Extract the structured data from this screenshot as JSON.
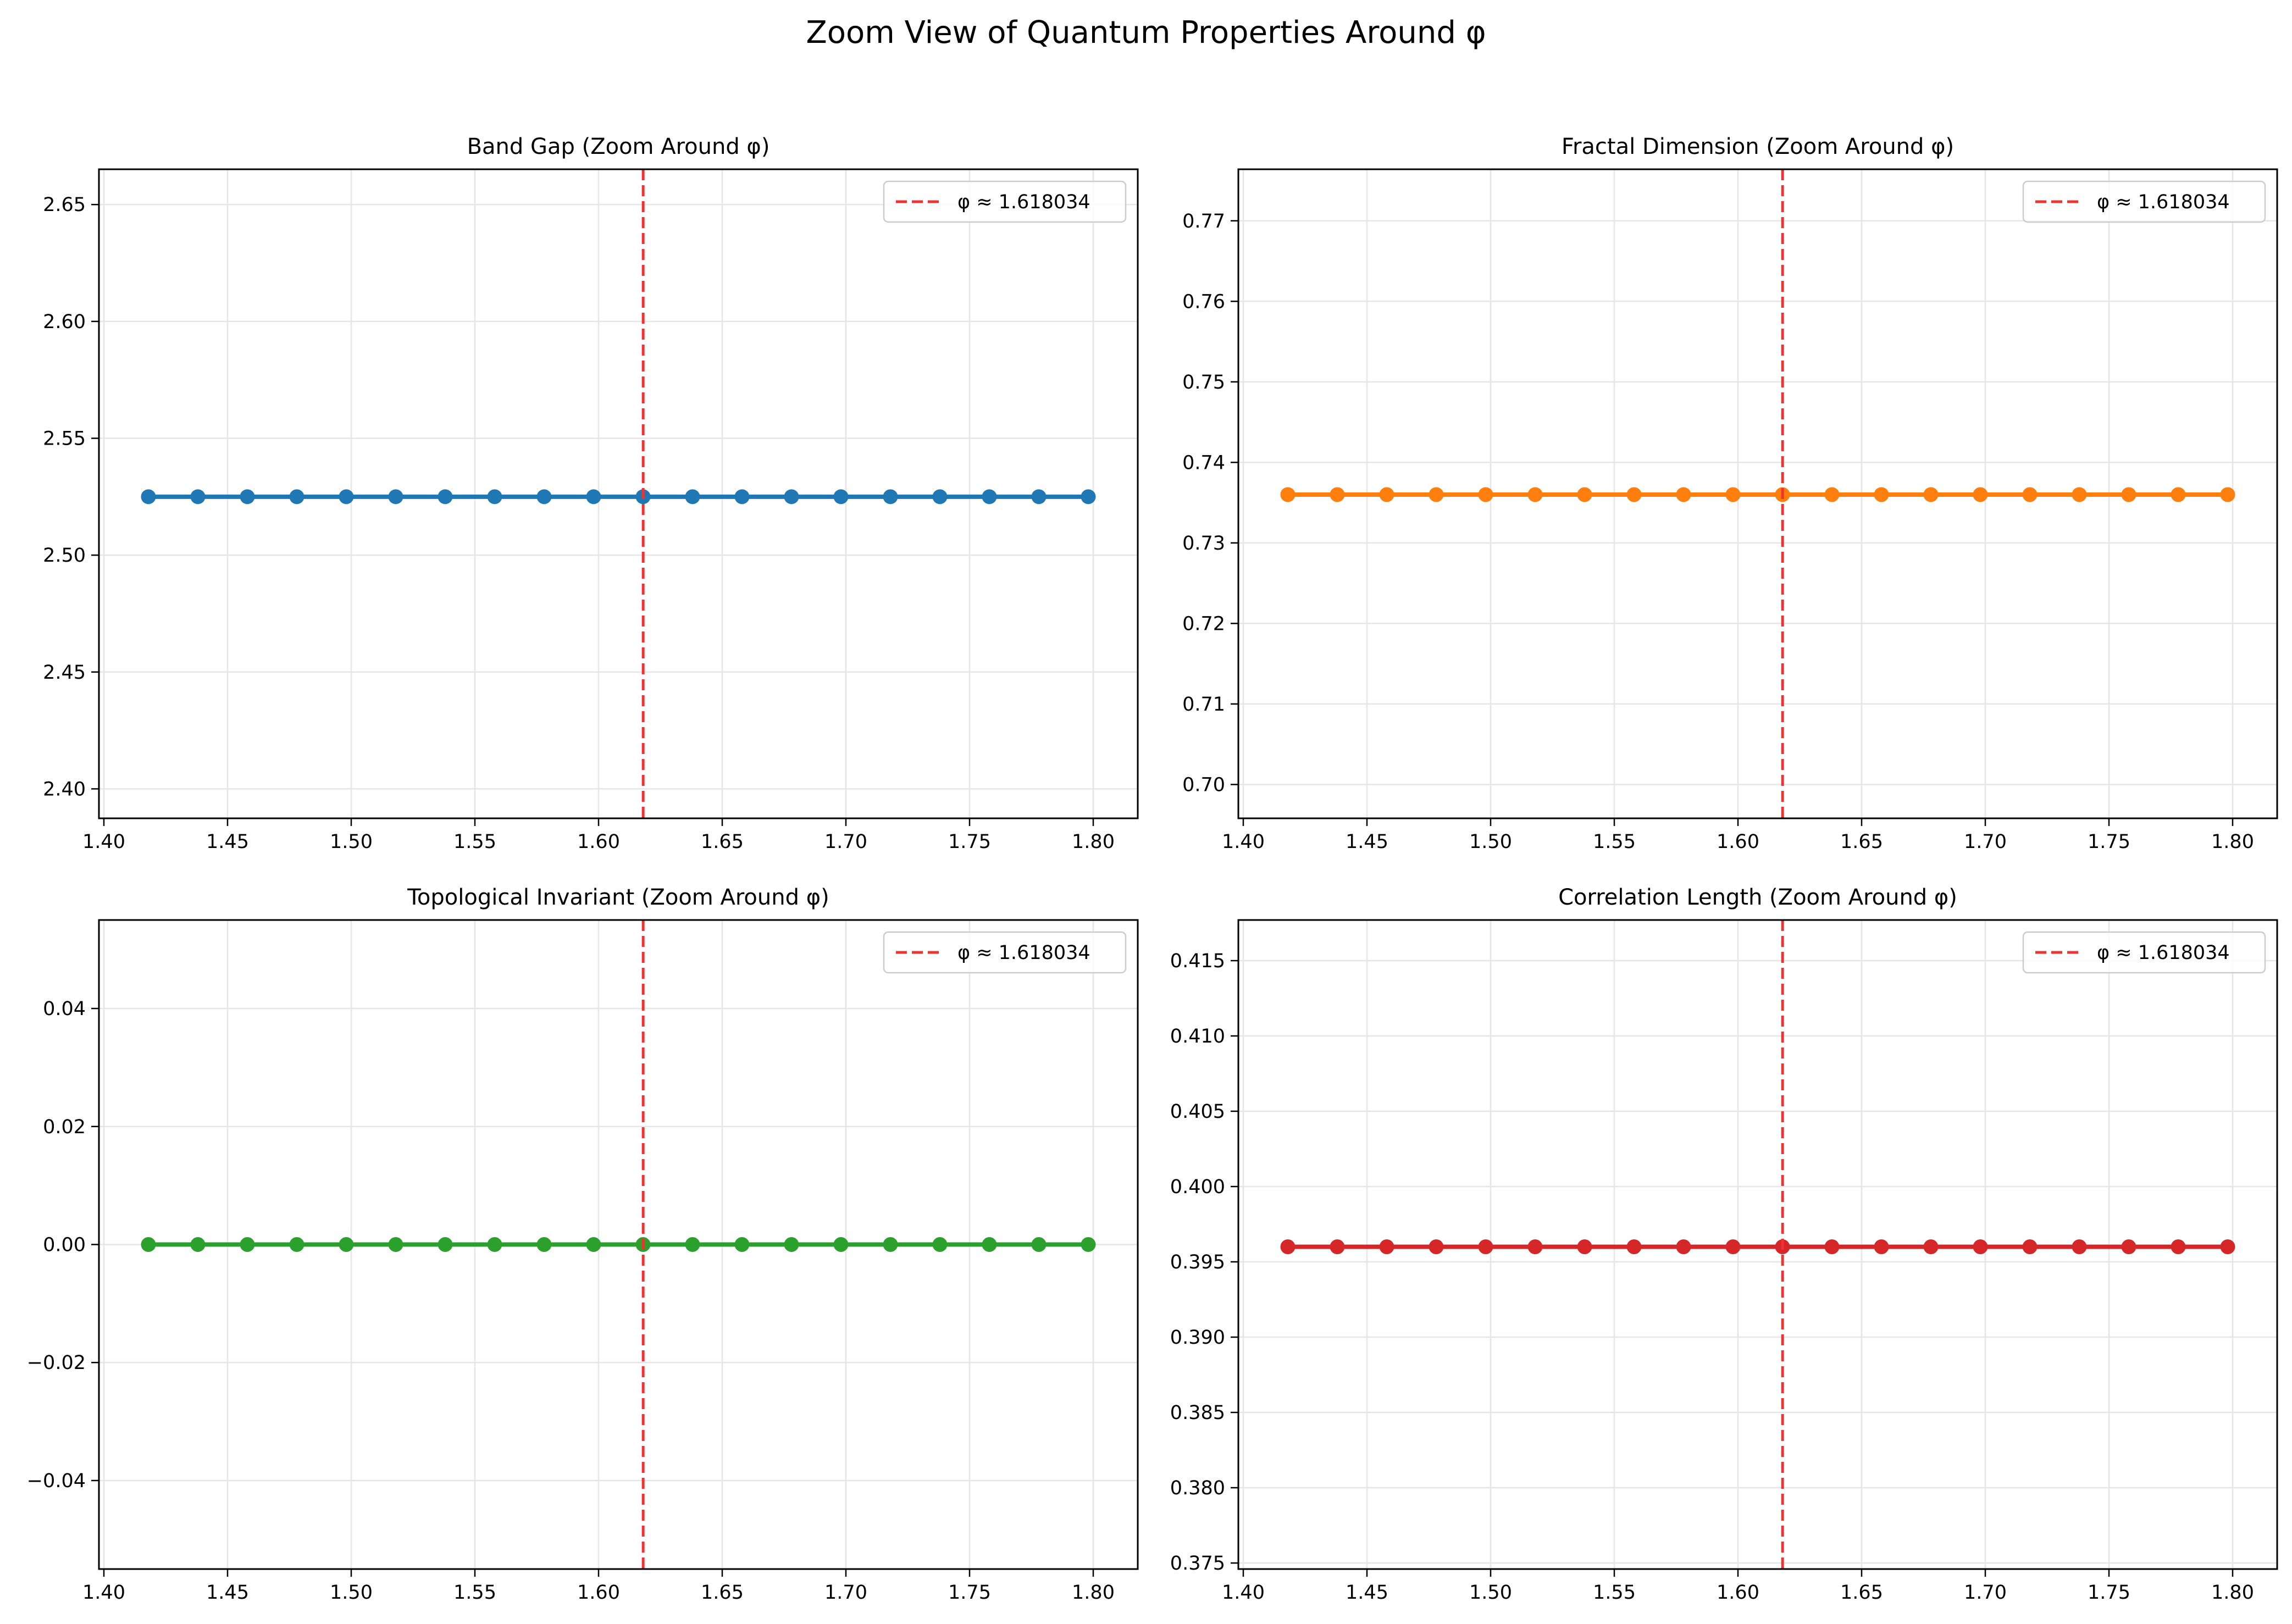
{
  "figure": {
    "suptitle": "Zoom View of Quantum Properties Around φ"
  },
  "chart_data": [
    {
      "type": "line",
      "title": "Band Gap (Zoom Around φ)",
      "xlabel": "",
      "ylabel": "",
      "color": "#1f77b4",
      "xlim": [
        1.398,
        1.818
      ],
      "ylim": [
        2.3874,
        2.6651
      ],
      "xticks": [
        1.4,
        1.45,
        1.5,
        1.55,
        1.6,
        1.65,
        1.7,
        1.75,
        1.8
      ],
      "yticks": [
        2.4,
        2.45,
        2.5,
        2.55,
        2.6,
        2.65
      ],
      "xtick_labels": [
        "1.40",
        "1.45",
        "1.50",
        "1.55",
        "1.60",
        "1.65",
        "1.70",
        "1.75",
        "1.80"
      ],
      "ytick_labels": [
        "2.40",
        "2.45",
        "2.50",
        "2.55",
        "2.60",
        "2.65"
      ],
      "x": [
        1.418,
        1.438,
        1.458,
        1.478,
        1.498,
        1.518,
        1.538,
        1.558,
        1.578,
        1.598,
        1.618,
        1.638,
        1.658,
        1.678,
        1.698,
        1.718,
        1.738,
        1.758,
        1.778,
        1.798
      ],
      "y": [
        2.525,
        2.525,
        2.525,
        2.525,
        2.525,
        2.525,
        2.525,
        2.525,
        2.525,
        2.525,
        2.525,
        2.525,
        2.525,
        2.525,
        2.525,
        2.525,
        2.525,
        2.525,
        2.525,
        2.525
      ],
      "vline": {
        "x": 1.618034,
        "color": "#ee3333",
        "label": "φ ≈ 1.618034"
      },
      "grid": true,
      "legend": "upper right"
    },
    {
      "type": "line",
      "title": "Fractal Dimension (Zoom Around φ)",
      "xlabel": "",
      "ylabel": "",
      "color": "#ff7f0e",
      "xlim": [
        1.398,
        1.818
      ],
      "ylim": [
        0.6958,
        0.7764
      ],
      "xticks": [
        1.4,
        1.45,
        1.5,
        1.55,
        1.6,
        1.65,
        1.7,
        1.75,
        1.8
      ],
      "yticks": [
        0.7,
        0.71,
        0.72,
        0.73,
        0.74,
        0.75,
        0.76,
        0.77
      ],
      "xtick_labels": [
        "1.40",
        "1.45",
        "1.50",
        "1.55",
        "1.60",
        "1.65",
        "1.70",
        "1.75",
        "1.80"
      ],
      "ytick_labels": [
        "0.70",
        "0.71",
        "0.72",
        "0.73",
        "0.74",
        "0.75",
        "0.76",
        "0.77"
      ],
      "x": [
        1.418,
        1.438,
        1.458,
        1.478,
        1.498,
        1.518,
        1.538,
        1.558,
        1.578,
        1.598,
        1.618,
        1.638,
        1.658,
        1.678,
        1.698,
        1.718,
        1.738,
        1.758,
        1.778,
        1.798
      ],
      "y": [
        0.736,
        0.736,
        0.736,
        0.736,
        0.736,
        0.736,
        0.736,
        0.736,
        0.736,
        0.736,
        0.736,
        0.736,
        0.736,
        0.736,
        0.736,
        0.736,
        0.736,
        0.736,
        0.736,
        0.736
      ],
      "vline": {
        "x": 1.618034,
        "color": "#ee3333",
        "label": "φ ≈ 1.618034"
      },
      "grid": true,
      "legend": "upper right"
    },
    {
      "type": "line",
      "title": "Topological Invariant (Zoom Around φ)",
      "xlabel": "",
      "ylabel": "",
      "color": "#2ca02c",
      "xlim": [
        1.398,
        1.818
      ],
      "ylim": [
        -0.055,
        0.055
      ],
      "xticks": [
        1.4,
        1.45,
        1.5,
        1.55,
        1.6,
        1.65,
        1.7,
        1.75,
        1.8
      ],
      "yticks": [
        -0.04,
        -0.02,
        0.0,
        0.02,
        0.04
      ],
      "xtick_labels": [
        "1.40",
        "1.45",
        "1.50",
        "1.55",
        "1.60",
        "1.65",
        "1.70",
        "1.75",
        "1.80"
      ],
      "ytick_labels": [
        "−0.04",
        "−0.02",
        "0.00",
        "0.02",
        "0.04"
      ],
      "x": [
        1.418,
        1.438,
        1.458,
        1.478,
        1.498,
        1.518,
        1.538,
        1.558,
        1.578,
        1.598,
        1.618,
        1.638,
        1.658,
        1.678,
        1.698,
        1.718,
        1.738,
        1.758,
        1.778,
        1.798
      ],
      "y": [
        0,
        0,
        0,
        0,
        0,
        0,
        0,
        0,
        0,
        0,
        0,
        0,
        0,
        0,
        0,
        0,
        0,
        0,
        0,
        0
      ],
      "vline": {
        "x": 1.618034,
        "color": "#ee3333",
        "label": "φ ≈ 1.618034"
      },
      "grid": true,
      "legend": "upper right"
    },
    {
      "type": "line",
      "title": "Correlation Length (Zoom Around φ)",
      "xlabel": "",
      "ylabel": "",
      "color": "#d62728",
      "xlim": [
        1.398,
        1.818
      ],
      "ylim": [
        0.3746,
        0.4177
      ],
      "xticks": [
        1.4,
        1.45,
        1.5,
        1.55,
        1.6,
        1.65,
        1.7,
        1.75,
        1.8
      ],
      "yticks": [
        0.375,
        0.38,
        0.385,
        0.39,
        0.395,
        0.4,
        0.405,
        0.41,
        0.415
      ],
      "xtick_labels": [
        "1.40",
        "1.45",
        "1.50",
        "1.55",
        "1.60",
        "1.65",
        "1.70",
        "1.75",
        "1.80"
      ],
      "ytick_labels": [
        "0.375",
        "0.380",
        "0.385",
        "0.390",
        "0.395",
        "0.400",
        "0.405",
        "0.410",
        "0.415"
      ],
      "x": [
        1.418,
        1.438,
        1.458,
        1.478,
        1.498,
        1.518,
        1.538,
        1.558,
        1.578,
        1.598,
        1.618,
        1.638,
        1.658,
        1.678,
        1.698,
        1.718,
        1.738,
        1.758,
        1.778,
        1.798
      ],
      "y": [
        0.396,
        0.396,
        0.396,
        0.396,
        0.396,
        0.396,
        0.396,
        0.396,
        0.396,
        0.396,
        0.396,
        0.396,
        0.396,
        0.396,
        0.396,
        0.396,
        0.396,
        0.396,
        0.396,
        0.396
      ],
      "vline": {
        "x": 1.618034,
        "color": "#ee3333",
        "label": "φ ≈ 1.618034"
      },
      "grid": true,
      "legend": "upper right"
    }
  ]
}
